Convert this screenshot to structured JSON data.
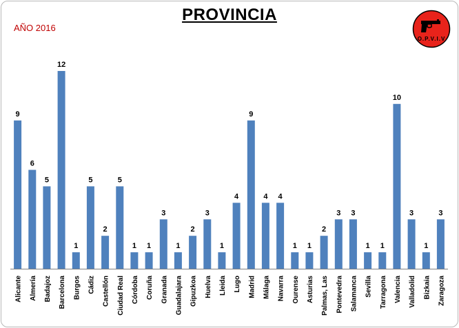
{
  "title": "PROVINCIA",
  "year_label": "AÑO 2016",
  "logo": {
    "text": "OPVIV",
    "icon": "pistol-icon",
    "fill": "#e8231b",
    "ring": "#000000"
  },
  "colors": {
    "bar": "#4f81bd",
    "year": "#c00000",
    "axis": "#808080"
  },
  "chart_data": {
    "type": "bar",
    "categories": [
      "Alicante",
      "Almería",
      "Badajoz",
      "Barcelona",
      "Burgos",
      "Cádiz",
      "Castellón",
      "Ciudad Real",
      "Córdoba",
      "Coruña",
      "Granada",
      "Guadalajara",
      "Gipuzkoa",
      "Huelva",
      "Lleida",
      "Lugo",
      "Madrid",
      "Málaga",
      "Navarra",
      "Ourense",
      "Asturias",
      "Palmas, Las",
      "Pontevedra",
      "Salamanca",
      "Sevilla",
      "Tarragona",
      "Valencia",
      "Valladolid",
      "Bizkaia",
      "Zaragoza"
    ],
    "values": [
      9,
      6,
      5,
      12,
      1,
      5,
      2,
      5,
      1,
      1,
      3,
      1,
      2,
      3,
      1,
      4,
      9,
      4,
      4,
      1,
      1,
      2,
      3,
      3,
      1,
      1,
      10,
      3,
      1,
      3
    ],
    "title": "PROVINCIA",
    "ylim": [
      0,
      12
    ],
    "data_labels": true,
    "grid": false,
    "legend": false
  }
}
